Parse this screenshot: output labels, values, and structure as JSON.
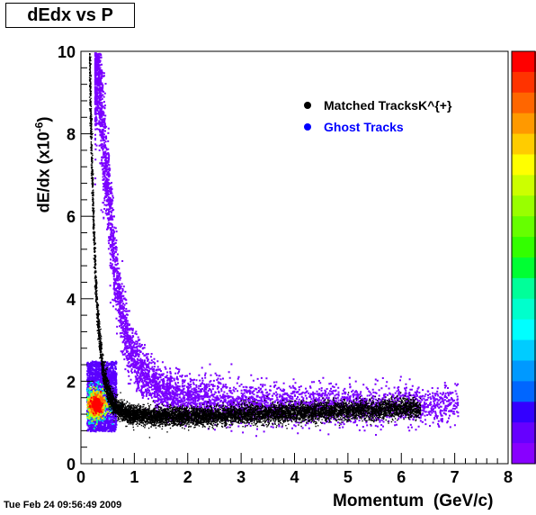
{
  "chart_data": {
    "type": "heatmap",
    "title": "dEdx vs P",
    "xlabel": "Momentum  (GeV/c)",
    "ylabel_main": "dE/dx (x10",
    "ylabel_sup": "-6",
    "ylabel_close": ")",
    "xlim": [
      0,
      8
    ],
    "ylim": [
      0,
      10
    ],
    "x_ticks": [
      "0",
      "1",
      "2",
      "3",
      "4",
      "5",
      "6",
      "7",
      "8"
    ],
    "y_ticks": [
      "0",
      "2",
      "4",
      "6",
      "8",
      "10"
    ],
    "x_tick_values": [
      0,
      1,
      2,
      3,
      4,
      5,
      6,
      7,
      8
    ],
    "y_tick_values": [
      0,
      2,
      4,
      6,
      8,
      10
    ],
    "legend_position": "top-right",
    "series": [
      {
        "name": "Matched TracksK^{+}",
        "color": "#000000",
        "band": {
          "description_points_p": [
            0.15,
            0.2,
            0.25,
            0.3,
            0.4,
            0.5,
            0.6,
            0.8,
            1.0,
            1.5,
            2.0,
            3.0,
            4.0,
            5.0,
            6.0
          ],
          "dedx": [
            10.0,
            7.0,
            5.0,
            3.6,
            2.3,
            1.75,
            1.45,
            1.25,
            1.2,
            1.15,
            1.15,
            1.2,
            1.25,
            1.3,
            1.35
          ]
        }
      },
      {
        "name": "Ghost Tracks",
        "color": "#0000ff",
        "band": {
          "description_points_p": [
            0.3,
            0.4,
            0.5,
            0.6,
            0.7,
            0.8,
            0.9,
            1.0,
            1.2,
            1.5,
            2.0,
            3.0,
            4.0,
            5.0
          ],
          "dedx": [
            10.0,
            8.0,
            6.5,
            5.0,
            4.0,
            3.3,
            2.8,
            2.5,
            2.1,
            1.8,
            1.6,
            1.5,
            1.45,
            1.45
          ]
        }
      }
    ],
    "palette_colors": [
      "#ff0000",
      "#ff3300",
      "#ff6600",
      "#ff9900",
      "#ffcc00",
      "#ffff00",
      "#ccff00",
      "#99ff00",
      "#66ff00",
      "#33ff00",
      "#00ff33",
      "#00ff99",
      "#00ffcc",
      "#00ffff",
      "#00ccff",
      "#0099ff",
      "#0066ff",
      "#3300ff",
      "#6600ff",
      "#8800ff"
    ]
  },
  "footer": {
    "timestamp": "Tue Feb 24 09:56:49 2009"
  }
}
